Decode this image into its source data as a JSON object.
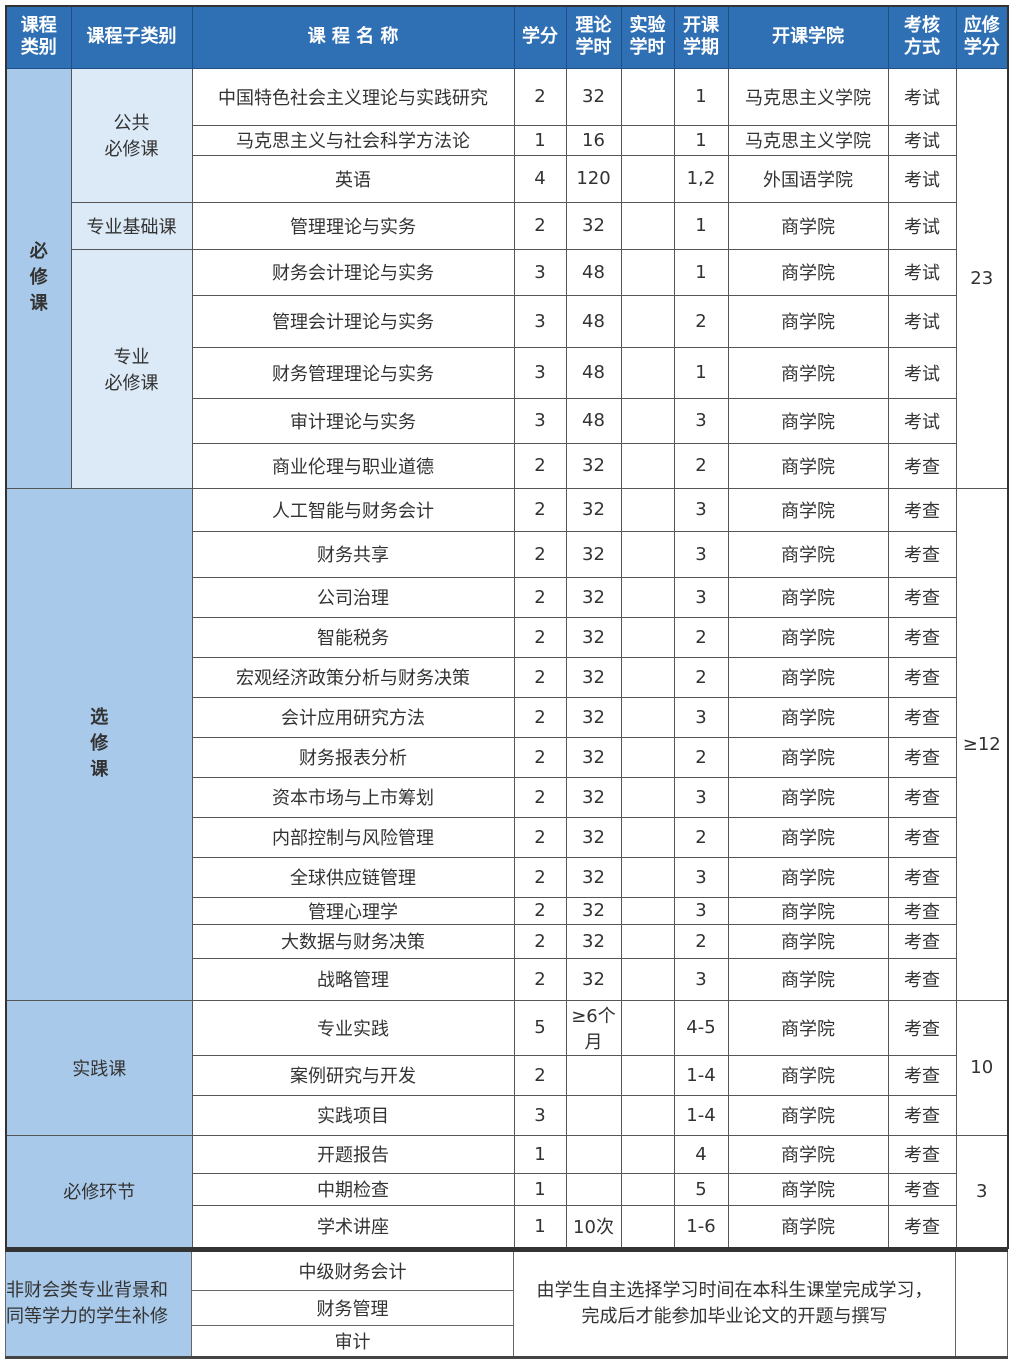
{
  "header": [
    "课程\n类别",
    "课程子类别",
    "课 程 名 称",
    "学分",
    "理论\n学时",
    "实验\n学时",
    "开课\n学期",
    "开课学院",
    "考核\n方式",
    "应修\n学分"
  ],
  "sections": [
    {
      "category": "必修课",
      "credits": "23",
      "subgroups": [
        {
          "name": "公共\n必修课",
          "courses": [
            [
              "中国特色社会主义理论与实践研究",
              "2",
              "32",
              "",
              "1",
              "马克思主义学院",
              "考试"
            ],
            [
              "马克思主义与社会科学方法论",
              "1",
              "16",
              "",
              "1",
              "马克思主义学院",
              "考试"
            ],
            [
              "英语",
              "4",
              "120",
              "",
              "1,2",
              "外国语学院",
              "考试"
            ]
          ]
        },
        {
          "name": "专业基础课",
          "courses": [
            [
              "管理理论与实务",
              "2",
              "32",
              "",
              "1",
              "商学院",
              "考试"
            ]
          ]
        },
        {
          "name": "专业\n必修课",
          "courses": [
            [
              "财务会计理论与实务",
              "3",
              "48",
              "",
              "1",
              "商学院",
              "考试"
            ],
            [
              "管理会计理论与实务",
              "3",
              "48",
              "",
              "2",
              "商学院",
              "考试"
            ],
            [
              "财务管理理论与实务",
              "3",
              "48",
              "",
              "1",
              "商学院",
              "考试"
            ],
            [
              "审计理论与实务",
              "3",
              "48",
              "",
              "3",
              "商学院",
              "考试"
            ],
            [
              "商业伦理与职业道德",
              "2",
              "32",
              "",
              "2",
              "商学院",
              "考查"
            ]
          ]
        }
      ]
    },
    {
      "category": "选修课",
      "credits": "≥12",
      "courses": [
        [
          "人工智能与财务会计",
          "2",
          "32",
          "",
          "3",
          "商学院",
          "考查"
        ],
        [
          "财务共享",
          "2",
          "32",
          "",
          "3",
          "商学院",
          "考查"
        ],
        [
          "公司治理",
          "2",
          "32",
          "",
          "3",
          "商学院",
          "考查"
        ],
        [
          "智能税务",
          "2",
          "32",
          "",
          "2",
          "商学院",
          "考查"
        ],
        [
          "宏观经济政策分析与财务决策",
          "2",
          "32",
          "",
          "2",
          "商学院",
          "考查"
        ],
        [
          "会计应用研究方法",
          "2",
          "32",
          "",
          "3",
          "商学院",
          "考查"
        ],
        [
          "财务报表分析",
          "2",
          "32",
          "",
          "2",
          "商学院",
          "考查"
        ],
        [
          "资本市场与上市筹划",
          "2",
          "32",
          "",
          "3",
          "商学院",
          "考查"
        ],
        [
          "内部控制与风险管理",
          "2",
          "32",
          "",
          "2",
          "商学院",
          "考查"
        ],
        [
          "全球供应链管理",
          "2",
          "32",
          "",
          "3",
          "商学院",
          "考查"
        ],
        [
          "管理心理学",
          "2",
          "32",
          "",
          "3",
          "商学院",
          "考查"
        ],
        [
          "大数据与财务决策",
          "2",
          "32",
          "",
          "2",
          "商学院",
          "考查"
        ],
        [
          "战略管理",
          "2",
          "32",
          "",
          "3",
          "商学院",
          "考查"
        ]
      ]
    },
    {
      "category": "实践课",
      "credits": "10",
      "courses": [
        [
          "专业实践",
          "5",
          "≥6个月",
          "",
          "4-5",
          "商学院",
          "考查"
        ],
        [
          "案例研究与开发",
          "2",
          "",
          "",
          "1-4",
          "商学院",
          "考查"
        ],
        [
          "实践项目",
          "3",
          "",
          "",
          "1-4",
          "商学院",
          "考查"
        ]
      ]
    },
    {
      "category": "必修环节",
      "credits": "3",
      "courses": [
        [
          "开题报告",
          "1",
          "",
          "",
          "4",
          "商学院",
          "考查"
        ],
        [
          "中期检查",
          "1",
          "",
          "",
          "5",
          "商学院",
          "考查"
        ],
        [
          "学术讲座",
          "1",
          "10次",
          "",
          "1-6",
          "商学院",
          "考查"
        ]
      ]
    }
  ],
  "supplement": {
    "label": "非财会类专业背景和\n同等学力的学生补修",
    "courses": [
      "中级财务会计",
      "财务管理",
      "审计"
    ],
    "note": "由学生自主选择学习时间在本科生课堂完成学习，\n完成后才能参加毕业论文的开题与撰写"
  },
  "colors": {
    "header": "#2f6fb4",
    "category": "#a8c9e9",
    "subcategory": "#dce9f6"
  }
}
